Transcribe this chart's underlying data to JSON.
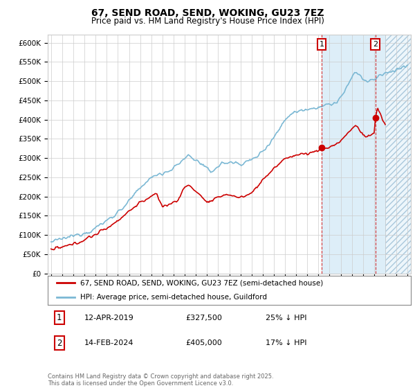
{
  "title": "67, SEND ROAD, SEND, WOKING, GU23 7EZ",
  "subtitle": "Price paid vs. HM Land Registry's House Price Index (HPI)",
  "ylim": [
    0,
    620000
  ],
  "yticks": [
    0,
    50000,
    100000,
    150000,
    200000,
    250000,
    300000,
    350000,
    400000,
    450000,
    500000,
    550000,
    600000
  ],
  "ytick_labels": [
    "£0",
    "£50K",
    "£100K",
    "£150K",
    "£200K",
    "£250K",
    "£300K",
    "£350K",
    "£400K",
    "£450K",
    "£500K",
    "£550K",
    "£600K"
  ],
  "xlim_start": 1994.7,
  "xlim_end": 2027.3,
  "hpi_color": "#7bb8d4",
  "price_color": "#cc0000",
  "dashed_color": "#cc0000",
  "marker1_date": 2019.28,
  "marker1_price": 327500,
  "marker2_date": 2024.12,
  "marker2_price": 405000,
  "blue_shade_start": 2019.28,
  "hatch_start": 2025.0,
  "legend_line1": "67, SEND ROAD, SEND, WOKING, GU23 7EZ (semi-detached house)",
  "legend_line2": "HPI: Average price, semi-detached house, Guildford",
  "table_row1": [
    "1",
    "12-APR-2019",
    "£327,500",
    "25% ↓ HPI"
  ],
  "table_row2": [
    "2",
    "14-FEB-2024",
    "£405,000",
    "17% ↓ HPI"
  ],
  "footer": "Contains HM Land Registry data © Crown copyright and database right 2025.\nThis data is licensed under the Open Government Licence v3.0.",
  "bg_color": "#ffffff",
  "grid_color": "#cccccc"
}
